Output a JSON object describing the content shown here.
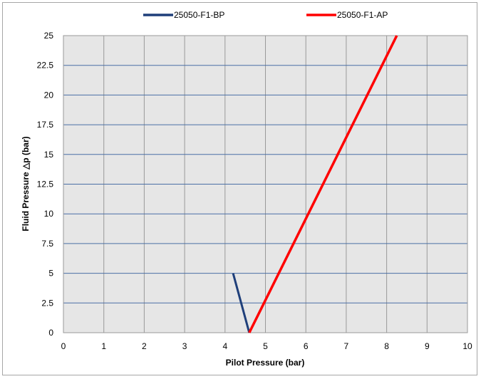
{
  "chart_data": {
    "type": "line",
    "xlabel": "Pilot Pressure (bar)",
    "ylabel": "Fluid Pressure △p (bar)",
    "xlim": [
      0,
      10
    ],
    "ylim": [
      0,
      25
    ],
    "x_ticks": [
      "0",
      "1",
      "2",
      "3",
      "4",
      "5",
      "6",
      "7",
      "8",
      "9",
      "10"
    ],
    "y_ticks": [
      "0",
      "2.5",
      "5",
      "7.5",
      "10",
      "12.5",
      "15",
      "17.5",
      "20",
      "22.5",
      "25"
    ],
    "grid": true,
    "legend_position": "top",
    "plot_background": "#e6e6e6",
    "grid_color": "#4a6fa5",
    "series": [
      {
        "name": "25050-F1-BP",
        "color": "#1f3f7a",
        "x": [
          4.2,
          4.6
        ],
        "y": [
          5,
          0
        ]
      },
      {
        "name": "25050-F1-AP",
        "color": "#ff0000",
        "x": [
          4.6,
          8.25
        ],
        "y": [
          0,
          25
        ]
      }
    ]
  }
}
